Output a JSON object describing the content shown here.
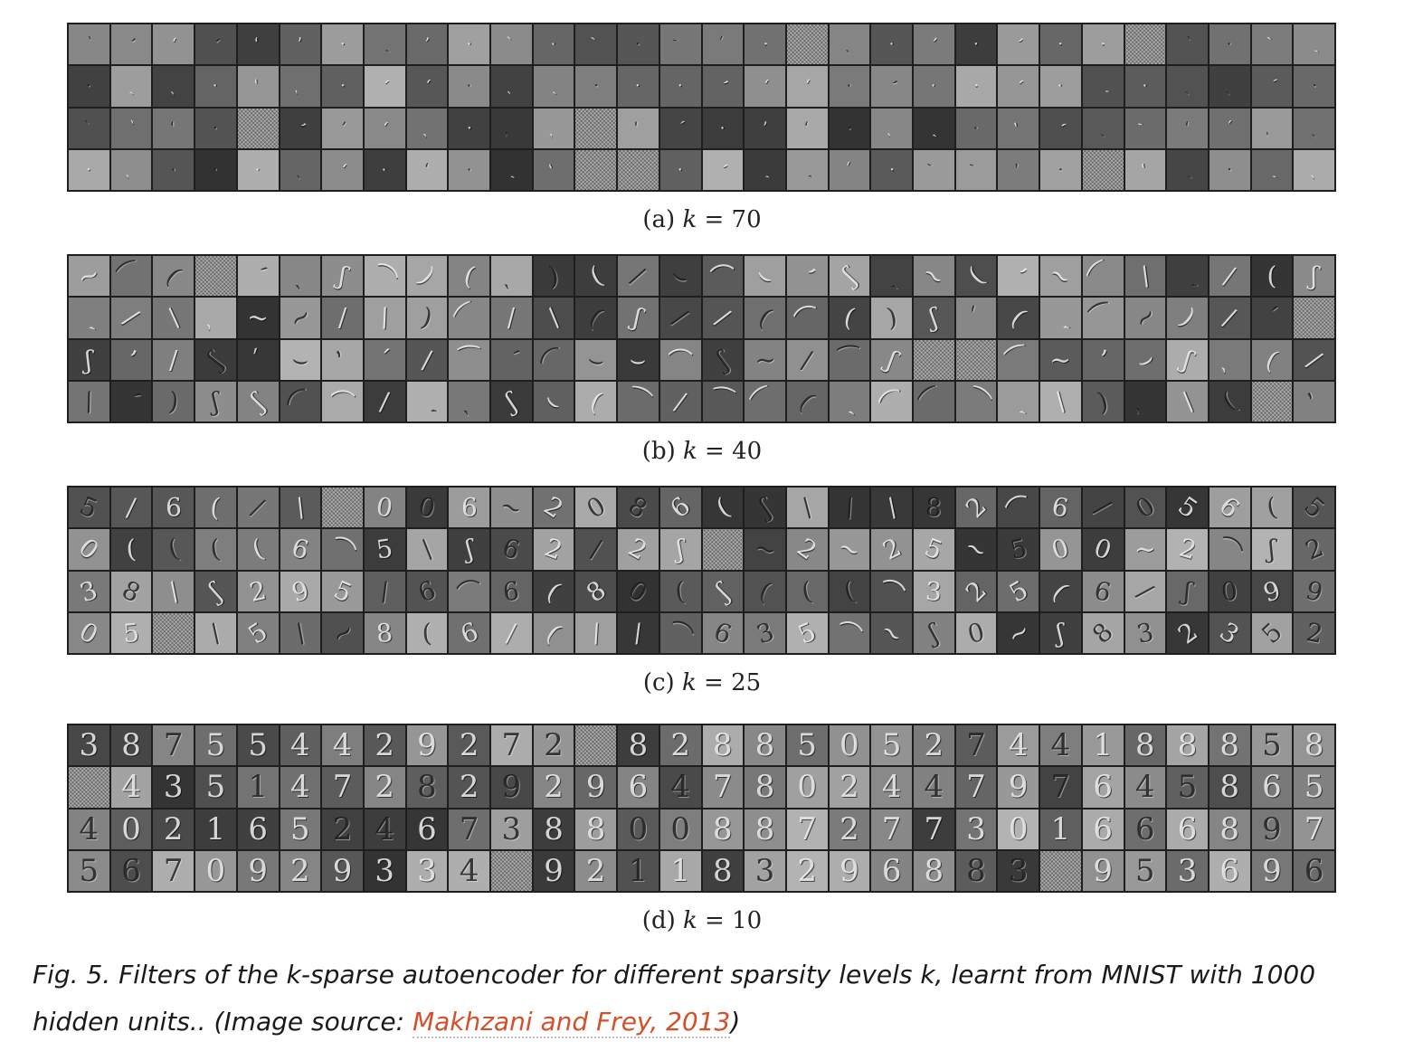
{
  "panels": [
    {
      "label": "(a)",
      "k_symbol": "k",
      "eq": "=",
      "k_value": "70",
      "glyph_style": "dots"
    },
    {
      "label": "(b)",
      "k_symbol": "k",
      "eq": "=",
      "k_value": "40",
      "glyph_style": "strokes"
    },
    {
      "label": "(c)",
      "k_symbol": "k",
      "eq": "=",
      "k_value": "25",
      "glyph_style": "mixed"
    },
    {
      "label": "(d)",
      "k_symbol": "k",
      "eq": "=",
      "k_value": "10",
      "glyph_style": "digits"
    }
  ],
  "grid": {
    "rows": 4,
    "cols": 30
  },
  "caption": {
    "text": "Fig. 5. Filters of the k-sparse autoencoder for different sparsity levels k, learnt from MNIST with 1000 hidden units.. (Image source: ",
    "link_text": "Makhzani and Frey, 2013",
    "closing": ")"
  },
  "colors": {
    "link": "#d4502a",
    "grid_border": "#1e1e1e"
  }
}
